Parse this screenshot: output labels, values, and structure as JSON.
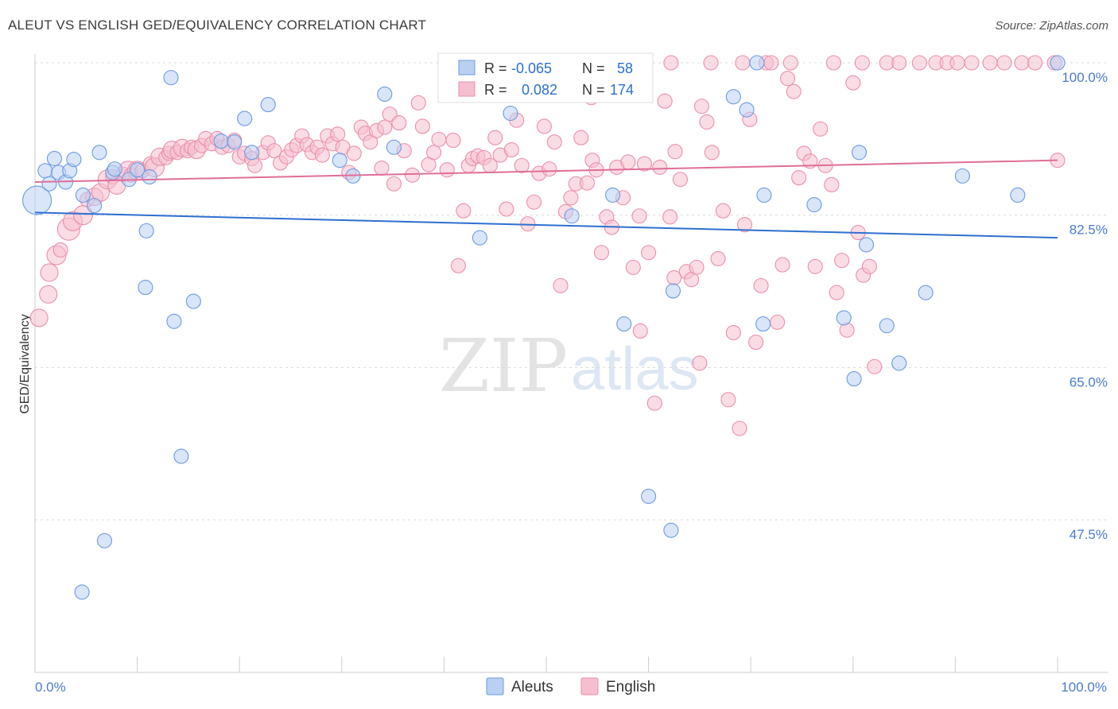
{
  "title": "ALEUT VS ENGLISH GED/EQUIVALENCY CORRELATION CHART",
  "source": "Source: ZipAtlas.com",
  "watermark": {
    "zip": "ZIP",
    "atlas": "atlas"
  },
  "legend": {
    "series": [
      {
        "r_label": "R =",
        "r_value": "-0.065",
        "n_label": "N =",
        "n_value": "58"
      },
      {
        "r_label": "R =",
        "r_value": "0.082",
        "n_label": "N =",
        "n_value": "174"
      }
    ]
  },
  "bottom_legend": [
    "Aleuts",
    "English"
  ],
  "colors": {
    "blue_fill": "#b9d0f2",
    "blue_stroke": "#6a9be0",
    "blue_line": "#2e6fd0",
    "pink_fill": "#f6bfd0",
    "pink_stroke": "#ea8fab",
    "pink_line": "#e06e98",
    "grid": "#d9d9d9",
    "axis_label": "#4a7bd0"
  },
  "chart_data": {
    "type": "scatter",
    "title": "ALEUT VS ENGLISH GED/EQUIVALENCY CORRELATION CHART",
    "xlabel": "",
    "ylabel": "GED/Equivalency",
    "xlim": [
      0,
      100
    ],
    "ylim": [
      34,
      101
    ],
    "x_tick_labels": [
      "0.0%",
      "100.0%"
    ],
    "y_ticks": [
      100.0,
      82.5,
      65.0,
      47.5
    ],
    "y_tick_labels": [
      "100.0%",
      "82.5%",
      "65.0%",
      "47.5%"
    ],
    "series": [
      {
        "name": "Aleuts",
        "trend": [
          [
            0,
            82.8
          ],
          [
            100,
            79.9
          ]
        ],
        "points": [
          [
            0.2,
            84.2,
            18
          ],
          [
            1.0,
            87.6,
            9
          ],
          [
            1.4,
            86.1,
            9
          ],
          [
            1.9,
            89.0,
            9
          ],
          [
            2.3,
            87.4,
            9
          ],
          [
            3.0,
            86.3,
            9
          ],
          [
            3.4,
            87.6,
            9
          ],
          [
            3.8,
            88.9,
            9
          ],
          [
            4.6,
            39.2,
            9
          ],
          [
            4.7,
            84.8,
            9
          ],
          [
            5.8,
            83.6,
            9
          ],
          [
            6.3,
            89.7,
            9
          ],
          [
            6.8,
            45.1,
            9
          ],
          [
            7.6,
            87.4,
            9
          ],
          [
            7.8,
            87.8,
            9
          ],
          [
            9.2,
            86.6,
            9
          ],
          [
            10.0,
            87.7,
            9
          ],
          [
            10.8,
            74.2,
            9
          ],
          [
            10.9,
            80.7,
            9
          ],
          [
            11.2,
            86.9,
            9
          ],
          [
            13.3,
            98.3,
            9
          ],
          [
            13.6,
            70.3,
            9
          ],
          [
            14.3,
            54.8,
            9
          ],
          [
            15.5,
            72.6,
            9
          ],
          [
            18.2,
            91.0,
            9
          ],
          [
            19.5,
            90.9,
            9
          ],
          [
            20.5,
            93.6,
            9
          ],
          [
            21.2,
            89.7,
            9
          ],
          [
            22.8,
            95.2,
            9
          ],
          [
            29.8,
            88.8,
            9
          ],
          [
            31.1,
            87.0,
            9
          ],
          [
            34.2,
            96.4,
            9
          ],
          [
            35.1,
            90.3,
            9
          ],
          [
            43.5,
            79.9,
            9
          ],
          [
            46.5,
            94.2,
            9
          ],
          [
            52.5,
            82.4,
            9
          ],
          [
            55.7,
            100.2,
            9
          ],
          [
            56.5,
            84.8,
            9
          ],
          [
            57.6,
            70.0,
            9
          ],
          [
            60.0,
            50.2,
            9
          ],
          [
            62.2,
            46.3,
            9
          ],
          [
            62.4,
            73.8,
            9
          ],
          [
            68.3,
            96.1,
            9
          ],
          [
            69.6,
            94.6,
            9
          ],
          [
            71.2,
            70.0,
            9
          ],
          [
            71.3,
            84.8,
            9
          ],
          [
            76.2,
            83.7,
            9
          ],
          [
            79.1,
            70.7,
            9
          ],
          [
            80.1,
            63.7,
            9
          ],
          [
            80.6,
            89.7,
            9
          ],
          [
            81.3,
            79.1,
            9
          ],
          [
            83.3,
            69.8,
            9
          ],
          [
            84.5,
            65.5,
            9
          ],
          [
            87.1,
            73.6,
            9
          ],
          [
            90.7,
            87.0,
            9
          ],
          [
            96.1,
            84.8,
            9
          ],
          [
            100.0,
            100.0,
            9
          ],
          [
            70.6,
            100.0,
            9
          ]
        ]
      },
      {
        "name": "English",
        "trend": [
          [
            0,
            86.3
          ],
          [
            100,
            88.8
          ]
        ],
        "points": [
          [
            0.4,
            70.7,
            11
          ],
          [
            1.3,
            73.4,
            11
          ],
          [
            1.4,
            75.9,
            11
          ],
          [
            2.1,
            77.9,
            12
          ],
          [
            2.5,
            78.5,
            9
          ],
          [
            3.3,
            80.9,
            14
          ],
          [
            3.7,
            81.8,
            12
          ],
          [
            4.7,
            82.5,
            12
          ],
          [
            5.1,
            84.3,
            9
          ],
          [
            5.8,
            84.6,
            11
          ],
          [
            6.4,
            85.1,
            11
          ],
          [
            7.1,
            86.6,
            12
          ],
          [
            7.6,
            86.9,
            9
          ],
          [
            8.0,
            85.9,
            11
          ],
          [
            8.6,
            87.2,
            9
          ],
          [
            9.1,
            87.6,
            12
          ],
          [
            9.4,
            87.1,
            9
          ],
          [
            10.0,
            87.6,
            12
          ],
          [
            10.5,
            87.6,
            9
          ],
          [
            11.3,
            88.4,
            9
          ],
          [
            11.7,
            88.0,
            12
          ],
          [
            12.2,
            89.2,
            11
          ],
          [
            12.8,
            89.1,
            9
          ],
          [
            13.1,
            89.6,
            9
          ],
          [
            13.4,
            90.0,
            11
          ],
          [
            13.9,
            89.7,
            9
          ],
          [
            14.4,
            90.2,
            11
          ],
          [
            14.9,
            89.9,
            9
          ],
          [
            15.3,
            90.3,
            9
          ],
          [
            15.8,
            90.0,
            11
          ],
          [
            16.3,
            90.5,
            9
          ],
          [
            16.7,
            91.3,
            9
          ],
          [
            17.3,
            90.7,
            9
          ],
          [
            17.8,
            91.3,
            9
          ],
          [
            18.3,
            90.3,
            9
          ],
          [
            18.9,
            90.5,
            9
          ],
          [
            19.5,
            91.1,
            9
          ],
          [
            20.0,
            89.2,
            9
          ],
          [
            20.5,
            89.6,
            9
          ],
          [
            21.2,
            89.0,
            9
          ],
          [
            21.5,
            88.2,
            9
          ],
          [
            22.3,
            89.7,
            9
          ],
          [
            22.8,
            90.8,
            9
          ],
          [
            23.4,
            89.9,
            9
          ],
          [
            24.0,
            88.5,
            9
          ],
          [
            24.6,
            89.2,
            9
          ],
          [
            25.1,
            90.0,
            9
          ],
          [
            25.6,
            90.5,
            9
          ],
          [
            26.1,
            91.6,
            9
          ],
          [
            26.6,
            90.6,
            9
          ],
          [
            27.1,
            89.7,
            9
          ],
          [
            27.6,
            90.3,
            9
          ],
          [
            28.1,
            89.4,
            9
          ],
          [
            28.6,
            91.6,
            9
          ],
          [
            29.1,
            90.7,
            9
          ],
          [
            29.6,
            91.8,
            9
          ],
          [
            30.1,
            90.3,
            9
          ],
          [
            30.7,
            87.4,
            9
          ],
          [
            31.2,
            89.6,
            9
          ],
          [
            31.9,
            92.6,
            9
          ],
          [
            32.3,
            91.9,
            9
          ],
          [
            32.8,
            90.9,
            9
          ],
          [
            33.4,
            92.2,
            9
          ],
          [
            33.9,
            87.9,
            9
          ],
          [
            34.2,
            92.6,
            9
          ],
          [
            34.7,
            94.1,
            9
          ],
          [
            35.1,
            86.1,
            9
          ],
          [
            35.6,
            93.1,
            9
          ],
          [
            36.1,
            89.9,
            9
          ],
          [
            36.9,
            87.1,
            9
          ],
          [
            37.5,
            95.4,
            9
          ],
          [
            37.9,
            92.7,
            9
          ],
          [
            38.5,
            88.3,
            9
          ],
          [
            39.0,
            89.7,
            9
          ],
          [
            39.5,
            91.2,
            9
          ],
          [
            40.3,
            87.7,
            9
          ],
          [
            40.9,
            91.1,
            9
          ],
          [
            41.4,
            76.7,
            9
          ],
          [
            41.9,
            83.0,
            9
          ],
          [
            42.4,
            88.2,
            9
          ],
          [
            42.8,
            89.0,
            9
          ],
          [
            43.3,
            89.3,
            9
          ],
          [
            43.9,
            89.1,
            9
          ],
          [
            44.5,
            88.2,
            9
          ],
          [
            45.0,
            91.4,
            9
          ],
          [
            45.5,
            89.4,
            9
          ],
          [
            46.1,
            83.2,
            9
          ],
          [
            46.6,
            90.0,
            9
          ],
          [
            47.1,
            93.4,
            9
          ],
          [
            47.6,
            88.2,
            9
          ],
          [
            48.2,
            81.5,
            9
          ],
          [
            48.8,
            84.0,
            9
          ],
          [
            49.3,
            87.3,
            9
          ],
          [
            49.8,
            92.7,
            9
          ],
          [
            50.3,
            87.8,
            9
          ],
          [
            50.8,
            90.9,
            9
          ],
          [
            51.4,
            74.4,
            9
          ],
          [
            51.9,
            82.9,
            9
          ],
          [
            52.4,
            84.5,
            9
          ],
          [
            52.9,
            86.1,
            9
          ],
          [
            53.4,
            91.4,
            9
          ],
          [
            54.0,
            86.2,
            9
          ],
          [
            54.5,
            88.8,
            9
          ],
          [
            54.9,
            87.7,
            9
          ],
          [
            55.4,
            78.2,
            9
          ],
          [
            55.9,
            82.3,
            9
          ],
          [
            56.4,
            81.1,
            9
          ],
          [
            56.9,
            88.0,
            9
          ],
          [
            57.5,
            84.5,
            9
          ],
          [
            58.0,
            88.6,
            9
          ],
          [
            58.5,
            76.5,
            9
          ],
          [
            59.1,
            82.4,
            9
          ],
          [
            59.6,
            88.4,
            9
          ],
          [
            60.0,
            78.2,
            9
          ],
          [
            60.6,
            60.9,
            9
          ],
          [
            61.1,
            88.0,
            9
          ],
          [
            61.6,
            95.6,
            9
          ],
          [
            62.1,
            82.3,
            9
          ],
          [
            62.6,
            89.8,
            9
          ],
          [
            63.1,
            86.6,
            9
          ],
          [
            63.7,
            76.0,
            9
          ],
          [
            64.2,
            75.1,
            9
          ],
          [
            64.7,
            76.5,
            9
          ],
          [
            65.2,
            95.0,
            9
          ],
          [
            65.7,
            93.2,
            9
          ],
          [
            66.2,
            89.7,
            9
          ],
          [
            66.8,
            77.5,
            9
          ],
          [
            67.3,
            83.0,
            9
          ],
          [
            67.8,
            61.3,
            9
          ],
          [
            68.3,
            69.0,
            9
          ],
          [
            68.9,
            58.0,
            9
          ],
          [
            69.4,
            81.4,
            9
          ],
          [
            69.9,
            93.5,
            9
          ],
          [
            70.5,
            67.9,
            9
          ],
          [
            71.0,
            74.4,
            9
          ],
          [
            71.5,
            100.0,
            9
          ],
          [
            72.0,
            100.0,
            9
          ],
          [
            72.6,
            70.2,
            9
          ],
          [
            73.1,
            76.8,
            9
          ],
          [
            73.6,
            98.2,
            9
          ],
          [
            74.2,
            96.7,
            9
          ],
          [
            74.7,
            86.8,
            9
          ],
          [
            75.2,
            89.6,
            9
          ],
          [
            75.8,
            88.7,
            9
          ],
          [
            76.3,
            76.6,
            9
          ],
          [
            76.8,
            92.4,
            9
          ],
          [
            77.3,
            88.2,
            9
          ],
          [
            77.9,
            86.0,
            9
          ],
          [
            78.4,
            73.6,
            9
          ],
          [
            78.9,
            77.3,
            9
          ],
          [
            79.4,
            69.3,
            9
          ],
          [
            80.0,
            97.7,
            9
          ],
          [
            80.5,
            80.5,
            9
          ],
          [
            81.0,
            75.6,
            9
          ],
          [
            81.6,
            76.6,
            9
          ],
          [
            82.1,
            65.1,
            9
          ],
          [
            62.2,
            100.0,
            9
          ],
          [
            66.1,
            100.0,
            9
          ],
          [
            69.2,
            100.0,
            9
          ],
          [
            73.9,
            100.0,
            9
          ],
          [
            78.1,
            100.0,
            9
          ],
          [
            80.9,
            100.0,
            9
          ],
          [
            83.3,
            100.0,
            9
          ],
          [
            84.5,
            100.0,
            9
          ],
          [
            86.5,
            100.0,
            9
          ],
          [
            88.1,
            100.0,
            9
          ],
          [
            89.2,
            100.0,
            9
          ],
          [
            90.2,
            100.0,
            9
          ],
          [
            91.6,
            100.0,
            9
          ],
          [
            93.4,
            100.0,
            9
          ],
          [
            94.8,
            100.0,
            9
          ],
          [
            96.5,
            100.0,
            9
          ],
          [
            97.8,
            100.0,
            9
          ],
          [
            99.7,
            100.0,
            9
          ],
          [
            100.0,
            88.8,
            9
          ],
          [
            65.0,
            65.5,
            9
          ],
          [
            62.5,
            75.3,
            9
          ],
          [
            59.2,
            69.2,
            9
          ],
          [
            54.4,
            96.0,
            9
          ]
        ]
      }
    ]
  }
}
